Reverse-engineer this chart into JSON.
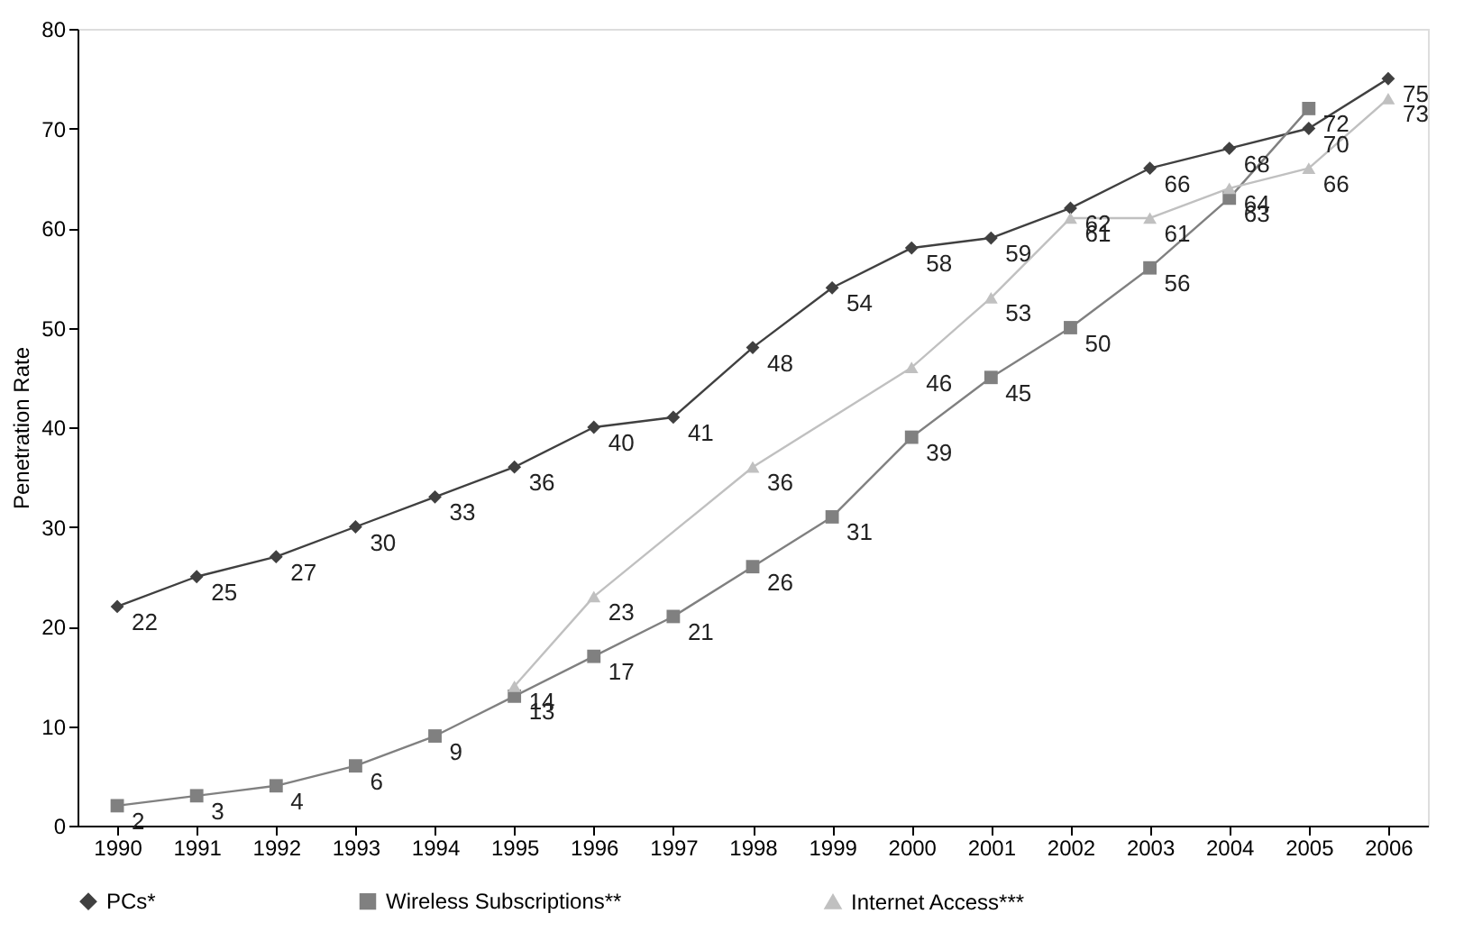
{
  "chart_data": {
    "type": "line",
    "ylabel": "Penetration Rate",
    "x": [
      1990,
      1991,
      1992,
      1993,
      1994,
      1995,
      1996,
      1997,
      1998,
      1999,
      2000,
      2001,
      2002,
      2003,
      2004,
      2005,
      2006
    ],
    "series": [
      {
        "name": "PCs*",
        "color": "#404040",
        "marker": "diamond",
        "values": [
          22,
          25,
          27,
          30,
          33,
          36,
          40,
          41,
          48,
          54,
          58,
          59,
          62,
          66,
          68,
          70,
          75
        ]
      },
      {
        "name": "Wireless Subscriptions**",
        "color": "#808080",
        "marker": "square",
        "x": [
          1990,
          1991,
          1992,
          1993,
          1994,
          1995,
          1996,
          1997,
          1998,
          1999,
          2000,
          2001,
          2002,
          2003,
          2004,
          2005
        ],
        "values": [
          2,
          3,
          4,
          6,
          9,
          13,
          17,
          21,
          26,
          31,
          39,
          45,
          50,
          56,
          63,
          72
        ]
      },
      {
        "name": "Internet Access***",
        "color": "#c0c0c0",
        "marker": "triangle",
        "x": [
          1995,
          1996,
          1998,
          2000,
          2001,
          2002,
          2003,
          2004,
          2005,
          2006
        ],
        "values": [
          14,
          23,
          36,
          46,
          53,
          61,
          61,
          64,
          66,
          73
        ]
      }
    ],
    "xlim": [
      1989.5,
      2006.5
    ],
    "xticks": [
      1990,
      1991,
      1992,
      1993,
      1994,
      1995,
      1996,
      1997,
      1998,
      1999,
      2000,
      2001,
      2002,
      2003,
      2004,
      2005,
      2006
    ],
    "ylim": [
      0,
      80
    ],
    "yticks": [
      0,
      10,
      20,
      30,
      40,
      50,
      60,
      70,
      80
    ],
    "grid": false,
    "legend": "bottom",
    "data_labels": true,
    "line_style": "solid"
  }
}
